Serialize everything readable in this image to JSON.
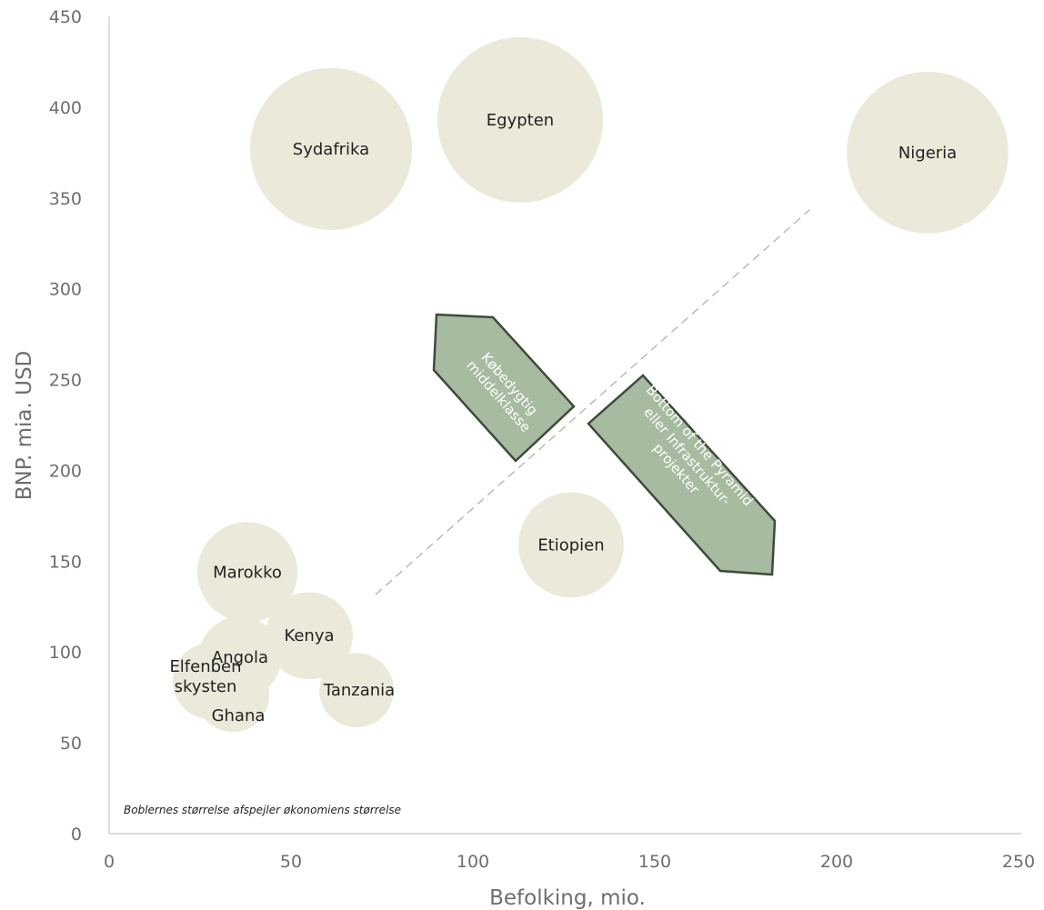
{
  "chart_data": {
    "type": "bubble",
    "xlabel": "Befolking, mio.",
    "ylabel": "BNP. mia. USD",
    "xlim": [
      0,
      250
    ],
    "ylim": [
      0,
      450
    ],
    "x_ticks": [
      0,
      50,
      100,
      150,
      200,
      250
    ],
    "y_ticks": [
      0,
      50,
      100,
      150,
      200,
      250,
      300,
      350,
      400,
      450
    ],
    "grid": false,
    "bubble_color": "#ebe9da",
    "points": [
      {
        "label": "Sydafrika",
        "x": 61,
        "y": 377,
        "size": 377
      },
      {
        "label": "Egypten",
        "x": 113,
        "y": 393,
        "size": 393
      },
      {
        "label": "Nigeria",
        "x": 225,
        "y": 375,
        "size": 375
      },
      {
        "label": "Etiopien",
        "x": 127,
        "y": 159,
        "size": 159
      },
      {
        "label": "Marokko",
        "x": 38,
        "y": 144,
        "size": 144
      },
      {
        "label": "Kenya",
        "x": 55,
        "y": 109,
        "size": 109
      },
      {
        "label": "Angola",
        "x": 36,
        "y": 97,
        "size": 97
      },
      {
        "label": "Tanzania",
        "x": 68,
        "y": 79,
        "size": 79
      },
      {
        "label": "Elfenben skysten",
        "x": 28,
        "y": 84,
        "size": 84
      },
      {
        "label": "Ghana",
        "x": 34,
        "y": 76,
        "size": 76
      }
    ],
    "annotations": [
      {
        "text": "Købedygtig middelklasse"
      },
      {
        "text": "Bottom of the Pyramid eller Infrastruktur-projekter"
      }
    ],
    "note": "Boblernes størrelse afspejler økonomiens størrelse",
    "arrow_color": "#a6bba0",
    "divider_color": "#a9b8a3"
  }
}
